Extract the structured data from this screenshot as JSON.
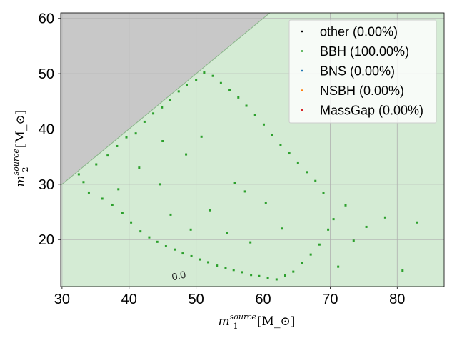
{
  "chart_data": {
    "type": "scatter",
    "title": "",
    "xlabel": "m_1^{source}[M_⊙]",
    "ylabel": "m_2^{source}[M_⊙]",
    "xlim": [
      29.8,
      87
    ],
    "ylim": [
      11.5,
      61
    ],
    "xticks": [
      30,
      40,
      50,
      60,
      70,
      80
    ],
    "yticks": [
      20,
      30,
      40,
      50,
      60
    ],
    "grid": true,
    "legend_position": "top-right",
    "background_region_color": "#d4ebd4",
    "excluded_region_color": "#c8c8c8",
    "excluded_region": "m2 > m1",
    "contour_label": "0.0",
    "series": [
      {
        "name": "other (0.00%)",
        "color": "#000000",
        "points": []
      },
      {
        "name": "BBH (100.00%)",
        "color": "#2ca02c",
        "points": [
          [
            32.5,
            31.8
          ],
          [
            33.2,
            30.4
          ],
          [
            34.0,
            28.5
          ],
          [
            35.1,
            33.6
          ],
          [
            36.0,
            27.4
          ],
          [
            36.8,
            35.2
          ],
          [
            37.5,
            26.3
          ],
          [
            38.2,
            36.9
          ],
          [
            39.0,
            24.8
          ],
          [
            39.6,
            38.5
          ],
          [
            40.3,
            23.1
          ],
          [
            41.0,
            39.2
          ],
          [
            41.7,
            21.5
          ],
          [
            42.3,
            41.3
          ],
          [
            43.0,
            20.4
          ],
          [
            43.6,
            42.8
          ],
          [
            44.2,
            19.6
          ],
          [
            44.9,
            43.9
          ],
          [
            45.5,
            18.8
          ],
          [
            46.1,
            45.2
          ],
          [
            46.8,
            18.2
          ],
          [
            47.4,
            46.8
          ],
          [
            48.0,
            17.5
          ],
          [
            48.6,
            47.9
          ],
          [
            49.3,
            17.0
          ],
          [
            50.0,
            48.8
          ],
          [
            50.6,
            16.4
          ],
          [
            51.2,
            50.2
          ],
          [
            51.8,
            15.9
          ],
          [
            52.5,
            49.6
          ],
          [
            53.1,
            15.3
          ],
          [
            53.7,
            48.3
          ],
          [
            54.4,
            14.8
          ],
          [
            55.0,
            47.1
          ],
          [
            55.6,
            14.5
          ],
          [
            56.3,
            45.7
          ],
          [
            56.9,
            14.1
          ],
          [
            57.5,
            44.2
          ],
          [
            58.2,
            13.6
          ],
          [
            58.8,
            42.5
          ],
          [
            59.4,
            13.4
          ],
          [
            60.1,
            40.8
          ],
          [
            60.7,
            13.0
          ],
          [
            61.3,
            38.9
          ],
          [
            62.0,
            12.8
          ],
          [
            62.6,
            37.1
          ],
          [
            63.3,
            13.5
          ],
          [
            63.9,
            35.6
          ],
          [
            64.5,
            14.2
          ],
          [
            65.2,
            33.8
          ],
          [
            65.8,
            15.7
          ],
          [
            66.5,
            32.2
          ],
          [
            67.1,
            17.3
          ],
          [
            67.8,
            30.6
          ],
          [
            68.4,
            19.1
          ],
          [
            69.0,
            28.4
          ],
          [
            69.7,
            21.8
          ],
          [
            70.5,
            23.7
          ],
          [
            71.2,
            15.1
          ],
          [
            72.3,
            26.2
          ],
          [
            73.5,
            19.8
          ],
          [
            75.4,
            22.3
          ],
          [
            78.2,
            24.0
          ],
          [
            80.8,
            14.4
          ],
          [
            82.9,
            23.1
          ],
          [
            55.8,
            30.2
          ],
          [
            48.5,
            35.4
          ],
          [
            44.6,
            30.0
          ],
          [
            52.1,
            25.3
          ],
          [
            57.3,
            28.7
          ],
          [
            46.2,
            24.5
          ],
          [
            41.5,
            33.0
          ],
          [
            38.4,
            29.1
          ],
          [
            50.8,
            38.6
          ],
          [
            54.6,
            21.2
          ],
          [
            60.4,
            26.6
          ],
          [
            62.8,
            22.0
          ],
          [
            58.1,
            19.5
          ],
          [
            49.2,
            21.8
          ],
          [
            45.0,
            37.8
          ]
        ]
      },
      {
        "name": "BNS (0.00%)",
        "color": "#1f77b4",
        "points": []
      },
      {
        "name": "NSBH (0.00%)",
        "color": "#ff7f0e",
        "points": []
      },
      {
        "name": "MassGap (0.00%)",
        "color": "#d62728",
        "points": []
      }
    ]
  }
}
